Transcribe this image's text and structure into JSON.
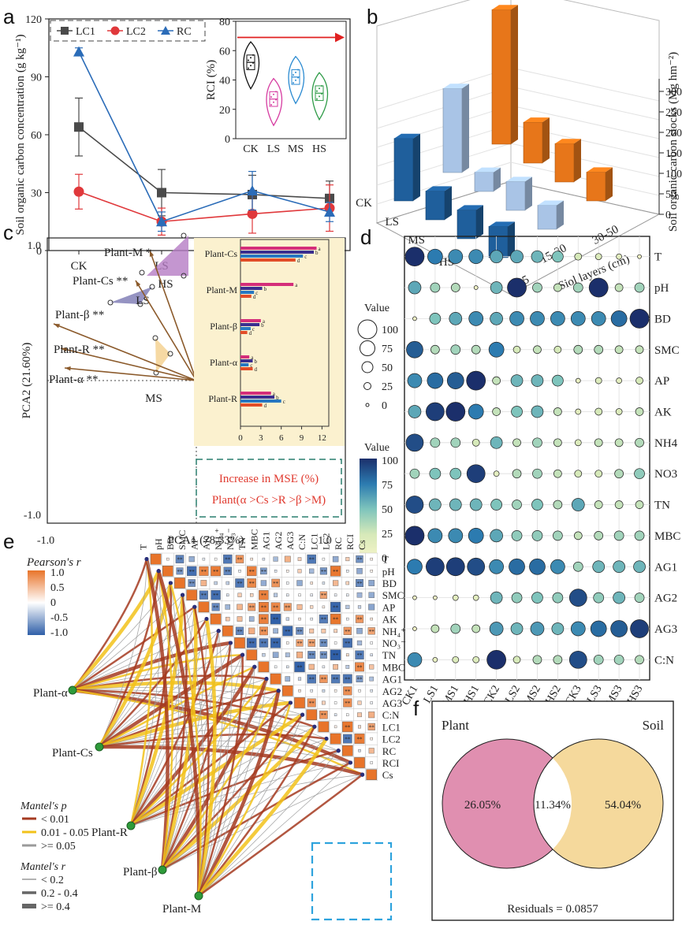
{
  "panels": {
    "a": "a",
    "b": "b",
    "c": "c",
    "d": "d",
    "e": "e",
    "f": "f"
  },
  "colors": {
    "lc1": "#4a4a4a",
    "lc2": "#e0383b",
    "rc": "#2b6cb8",
    "arrow": "#e02020",
    "brown": "#8b5a2b",
    "orange": "#e7761a",
    "lightblue": "#a9c4e6",
    "darkblue": "#1f5f9c",
    "pink": "#e08fb0",
    "yellow": "#f5d99c",
    "teal": "#2a7f6f"
  },
  "chart_data": [
    {
      "id": "a",
      "type": "line",
      "ylabel": "Soil organic carbon concentration (g kg⁻¹)",
      "categories": [
        "CK",
        "LS",
        "MS",
        "HS"
      ],
      "ylim": [
        0,
        120
      ],
      "yticks": [
        "0",
        "30",
        "60",
        "90",
        "120"
      ],
      "series": [
        {
          "name": "LC1",
          "values": [
            64,
            30,
            29,
            27
          ],
          "err": [
            15,
            12,
            10,
            9
          ]
        },
        {
          "name": "LC2",
          "values": [
            30.5,
            15,
            19,
            22
          ],
          "err": [
            9,
            7,
            10,
            12
          ]
        },
        {
          "name": "RC",
          "values": [
            103,
            15,
            31,
            20
          ],
          "err": [
            2,
            5,
            10,
            5
          ]
        }
      ],
      "inset": {
        "type": "violin",
        "ylabel": "RCI (%)",
        "categories": [
          "CK",
          "LS",
          "MS",
          "HS"
        ],
        "ylim": [
          0,
          80
        ],
        "yticks": [
          "0",
          "20",
          "40",
          "60",
          "80"
        ],
        "medians": [
          52,
          27,
          42,
          31
        ],
        "colors": [
          "#111111",
          "#d63ba0",
          "#2a8ad1",
          "#2e9b47"
        ]
      }
    },
    {
      "id": "b",
      "type": "bar3d",
      "ylabel": "Soil organic carbon stocks (Mg hm⁻²)",
      "xlabel": "Siol layers (cm)",
      "categories": [
        "CK",
        "LS",
        "MS",
        "HS"
      ],
      "layers": [
        "0-15",
        "15-30",
        "30-50"
      ],
      "zticks": [
        "0",
        "50",
        "100",
        "150",
        "200",
        "250",
        "300"
      ],
      "series": [
        {
          "name": "0-15",
          "values": [
            130,
            60,
            60,
            65
          ]
        },
        {
          "name": "15-30",
          "values": [
            175,
            40,
            60,
            50
          ]
        },
        {
          "name": "30-50",
          "values": [
            280,
            85,
            80,
            60
          ]
        }
      ]
    },
    {
      "id": "c",
      "type": "scatter",
      "xlabel": "PCA1 (78.33%)",
      "ylabel": "PCA2 (21.60%)",
      "xticks": [
        "-1.0",
        "1.0"
      ],
      "yticks": [
        "1.0",
        "-1.0"
      ],
      "vectors": [
        {
          "label": "Plant-M",
          "sig": "*",
          "x": -0.35,
          "y": 0.85
        },
        {
          "label": "Plant-Cs",
          "sig": "**",
          "x": -0.45,
          "y": 0.73
        },
        {
          "label": "Plant-β",
          "sig": "**",
          "x": -0.92,
          "y": 0.17
        },
        {
          "label": "Plant-R",
          "sig": "**",
          "x": -0.9,
          "y": -0.1
        },
        {
          "label": "Plant-α",
          "sig": "**",
          "x": -0.8,
          "y": -0.52
        }
      ],
      "groups": [
        "HS",
        "LS",
        "MS",
        "CK"
      ],
      "note_line1": "Increase in MSE (%)",
      "note_line2": "Plant(α >Cs >R >β >M)",
      "inset": {
        "type": "bar",
        "categories": [
          "Plant-Cs",
          "Plant-M",
          "Plant-β",
          "Plant-α",
          "Plant-R"
        ],
        "xticks": [
          "0",
          "3",
          "6",
          "9",
          "12"
        ],
        "series": [
          [
            11.2,
            7.8,
            3.0,
            1.3,
            4.5
          ],
          [
            10.8,
            3.2,
            2.8,
            1.8,
            5.0
          ],
          [
            9.2,
            2.0,
            1.5,
            1.2,
            6.0
          ],
          [
            8.1,
            1.6,
            1.0,
            1.8,
            3.2
          ]
        ],
        "letters": [
          "a",
          "b",
          "c",
          "d"
        ]
      }
    },
    {
      "id": "d",
      "type": "heatmap",
      "legend_value_label": "Value",
      "size_ticks": [
        "100",
        "75",
        "50",
        "25",
        "0"
      ],
      "color_ticks": [
        "100",
        "75",
        "50",
        "25",
        "0"
      ],
      "columns": [
        "CK1",
        "LS1",
        "MS1",
        "HS1",
        "CK2",
        "LS2",
        "MS2",
        "HS2",
        "CK3",
        "LS3",
        "MS3",
        "HS3"
      ],
      "rows": [
        "T",
        "pH",
        "BD",
        "SMC",
        "AP",
        "AK",
        "NH4",
        "NO3",
        "TN",
        "MBC",
        "AG1",
        "AG2",
        "AG3",
        "C:N"
      ],
      "values": [
        [
          100,
          75,
          70,
          70,
          60,
          60,
          55,
          50,
          25,
          20,
          15,
          5
        ],
        [
          60,
          40,
          35,
          5,
          55,
          100,
          40,
          30,
          40,
          100,
          30,
          40
        ],
        [
          5,
          50,
          60,
          70,
          60,
          70,
          70,
          70,
          70,
          70,
          80,
          100
        ],
        [
          85,
          35,
          40,
          35,
          75,
          25,
          30,
          25,
          35,
          35,
          30,
          30
        ],
        [
          70,
          80,
          85,
          100,
          30,
          55,
          55,
          50,
          10,
          20,
          15,
          25
        ],
        [
          60,
          95,
          100,
          75,
          30,
          50,
          55,
          30,
          15,
          25,
          20,
          30
        ],
        [
          90,
          40,
          40,
          25,
          55,
          30,
          40,
          30,
          20,
          30,
          30,
          35
        ],
        [
          40,
          50,
          50,
          95,
          15,
          35,
          40,
          30,
          25,
          25,
          35,
          45
        ],
        [
          90,
          55,
          55,
          55,
          50,
          40,
          50,
          35,
          60,
          30,
          30,
          30
        ],
        [
          100,
          70,
          70,
          75,
          60,
          45,
          45,
          40,
          30,
          35,
          40,
          40
        ],
        [
          75,
          95,
          95,
          90,
          70,
          80,
          80,
          70,
          40,
          55,
          55,
          55
        ],
        [
          5,
          5,
          15,
          15,
          55,
          45,
          50,
          45,
          90,
          45,
          55,
          40
        ],
        [
          5,
          30,
          40,
          30,
          65,
          55,
          65,
          55,
          70,
          80,
          85,
          95
        ],
        [
          70,
          10,
          20,
          20,
          100,
          25,
          35,
          35,
          90,
          40,
          40,
          35
        ]
      ]
    },
    {
      "id": "e",
      "type": "correlation",
      "pearson_title": "Pearson's r",
      "pearson_ticks": [
        "1.0",
        "0.5",
        "0",
        "-0.5",
        "-1.0"
      ],
      "mantel_p_title": "Mantel's p",
      "mantel_p_items": [
        "< 0.01",
        "0.01 - 0.05",
        ">= 0.05"
      ],
      "mantel_r_title": "Mantel's r",
      "mantel_r_items": [
        "< 0.2",
        "0.2 - 0.4",
        ">= 0.4"
      ],
      "variables": [
        "T",
        "pH",
        "BD",
        "SMC",
        "AP",
        "AK",
        "NH₄⁺",
        "NO₃⁻",
        "TN",
        "MBC",
        "AG1",
        "AG2",
        "AG3",
        "C:N",
        "LC1",
        "LC2",
        "RC",
        "RCI",
        "Cs"
      ],
      "plants": [
        "Plant-α",
        "Plant-Cs",
        "Plant-R",
        "Plant-β",
        "Plant-M"
      ]
    },
    {
      "id": "f",
      "type": "venn",
      "left_label": "Plant",
      "right_label": "Soil",
      "left_value": "26.05%",
      "overlap_value": "11.34%",
      "right_value": "54.04%",
      "residuals": "Residuals  =  0.0857"
    }
  ]
}
